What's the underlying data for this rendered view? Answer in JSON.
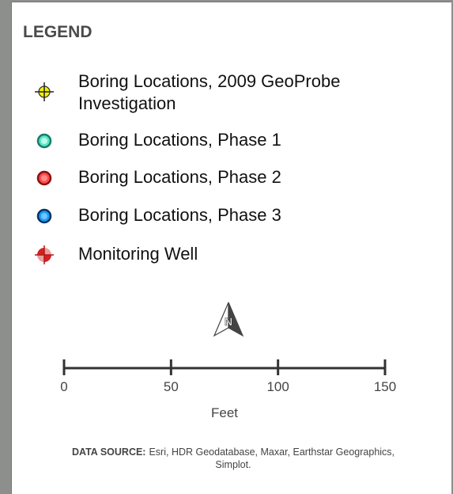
{
  "legend": {
    "title": "LEGEND",
    "items": [
      {
        "label": "Boring Locations, 2009 GeoProbe Investigation"
      },
      {
        "label": "Boring Locations, Phase 1"
      },
      {
        "label": "Boring Locations, Phase 2"
      },
      {
        "label": "Boring Locations, Phase 3"
      },
      {
        "label": "Monitoring Well"
      }
    ],
    "north_arrow": "N",
    "scale_bar": {
      "ticks": [
        0,
        50,
        100,
        150
      ],
      "unit": "Feet"
    },
    "data_source": {
      "heading": "DATA SOURCE:",
      "text": "Esri, HDR Geodatabase, Maxar, Earthstar Geographics, Simplot."
    }
  }
}
